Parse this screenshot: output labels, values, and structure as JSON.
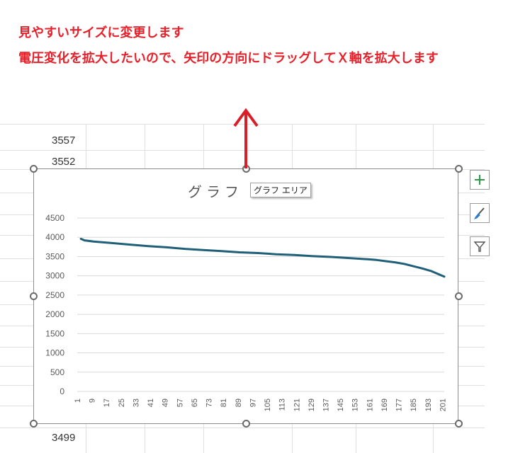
{
  "annotations": {
    "line1": "見やすいサイズに変更します",
    "line2": "電圧変化を拡大したいので、矢印の方向にドラッグしてＸ軸を拡大します"
  },
  "cells": {
    "above1": "3557",
    "above2": "3552",
    "below1": "3499"
  },
  "chart": {
    "title": "グラフ タ",
    "tooltip": "グラフ エリア",
    "line_color": "#1f5f78"
  },
  "side_buttons": {
    "elements_icon": "plus-icon",
    "styles_icon": "brush-icon",
    "filters_icon": "filter-icon"
  },
  "colors": {
    "annotation": "#e8202a",
    "arrow": "#d91e28"
  },
  "chart_data": {
    "type": "line",
    "title": "グラフ タ",
    "ylim": [
      0,
      4500
    ],
    "yticks": [
      0,
      500,
      1000,
      1500,
      2000,
      2500,
      3000,
      3500,
      4000,
      4500
    ],
    "xticks": [
      1,
      9,
      17,
      25,
      33,
      41,
      49,
      57,
      65,
      73,
      81,
      89,
      97,
      105,
      113,
      121,
      129,
      137,
      145,
      153,
      161,
      169,
      177,
      185,
      193,
      201
    ],
    "xlim": [
      1,
      202
    ],
    "grid": true,
    "series": [
      {
        "x": [
          3,
          5,
          10,
          20,
          30,
          40,
          50,
          60,
          70,
          80,
          90,
          100,
          110,
          120,
          130,
          140,
          150,
          160,
          165,
          170,
          175,
          180,
          185,
          190,
          195,
          200,
          202
        ],
        "values": [
          3960,
          3920,
          3890,
          3850,
          3810,
          3770,
          3740,
          3700,
          3670,
          3640,
          3610,
          3590,
          3560,
          3540,
          3510,
          3490,
          3460,
          3430,
          3410,
          3380,
          3350,
          3310,
          3250,
          3190,
          3120,
          3020,
          2980
        ]
      }
    ]
  }
}
